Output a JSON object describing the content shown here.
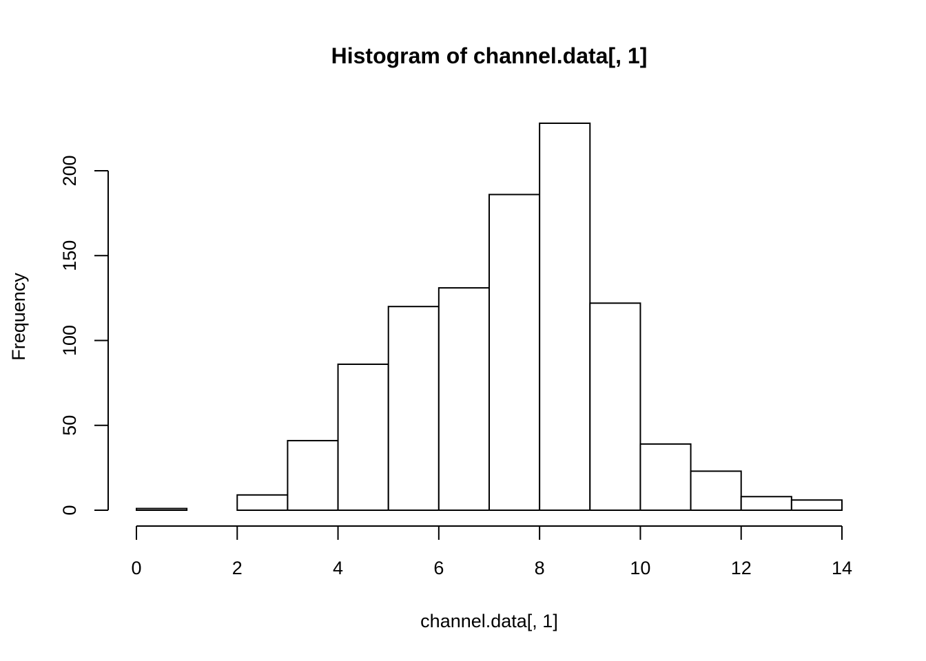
{
  "chart_data": {
    "type": "bar",
    "subtype": "histogram",
    "title": "Histogram of channel.data[, 1]",
    "xlabel": "channel.data[, 1]",
    "ylabel": "Frequency",
    "xlim": [
      0,
      14
    ],
    "ylim": [
      0,
      230
    ],
    "x_ticks": [
      0,
      2,
      4,
      6,
      8,
      10,
      12,
      14
    ],
    "y_ticks": [
      0,
      50,
      100,
      150,
      200
    ],
    "bins": [
      {
        "from": 0,
        "to": 1,
        "count": 1
      },
      {
        "from": 1,
        "to": 2,
        "count": 0
      },
      {
        "from": 2,
        "to": 3,
        "count": 9
      },
      {
        "from": 3,
        "to": 4,
        "count": 41
      },
      {
        "from": 4,
        "to": 5,
        "count": 86
      },
      {
        "from": 5,
        "to": 6,
        "count": 120
      },
      {
        "from": 6,
        "to": 7,
        "count": 131
      },
      {
        "from": 7,
        "to": 8,
        "count": 186
      },
      {
        "from": 8,
        "to": 9,
        "count": 228
      },
      {
        "from": 9,
        "to": 10,
        "count": 122
      },
      {
        "from": 10,
        "to": 11,
        "count": 39
      },
      {
        "from": 11,
        "to": 12,
        "count": 23
      },
      {
        "from": 12,
        "to": 13,
        "count": 8
      },
      {
        "from": 13,
        "to": 14,
        "count": 6
      }
    ],
    "grid": false,
    "legend": "none",
    "colors": {
      "bar_fill": "#ffffff",
      "bar_stroke": "#000000"
    }
  }
}
